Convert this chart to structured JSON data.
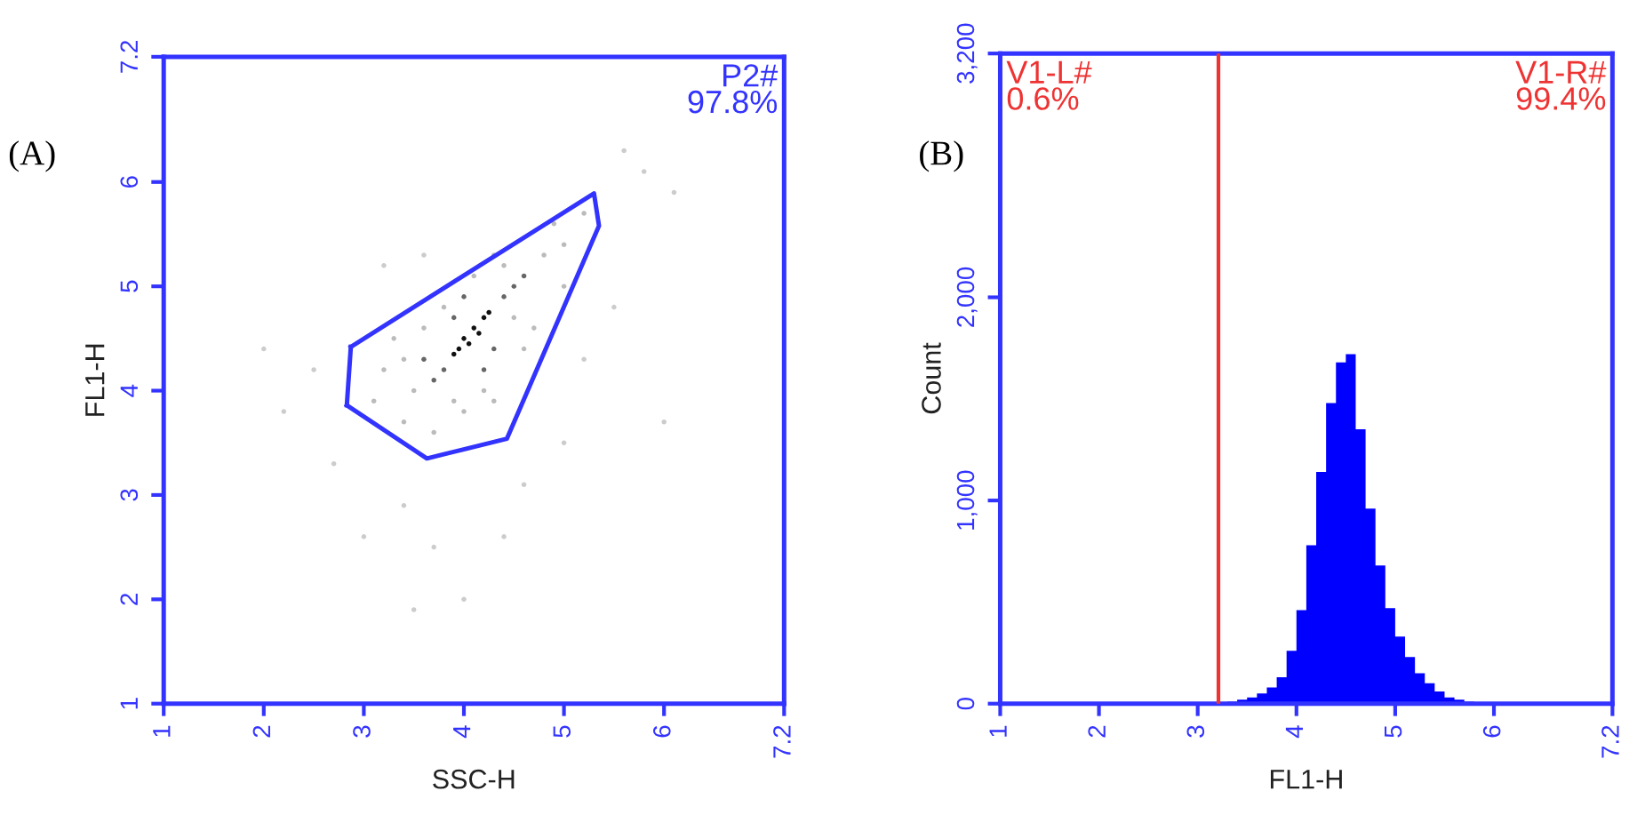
{
  "chart_data": [
    {
      "type": "scatter",
      "xlabel": "SSC-H",
      "ylabel": "FL1-H",
      "annotations": [
        "(A)",
        "P2#\n97.8%"
      ],
      "xlim": [
        1,
        7.2
      ],
      "ylim": [
        1,
        7.2
      ],
      "xticks": [
        1,
        2,
        3,
        4,
        5,
        6,
        7.2
      ],
      "yticks": [
        1,
        2,
        3,
        4,
        5,
        6,
        7.2
      ],
      "grid": false,
      "legend": false,
      "marker": "circle",
      "series": [
        {
          "type": "scatter",
          "x": [
            4.0,
            4.1,
            3.95,
            4.2,
            4.05,
            4.15,
            3.9,
            4.25,
            3.8,
            4.4,
            4.5,
            3.7,
            4.3,
            3.9,
            4.6,
            3.6,
            4.2,
            4.0,
            3.2,
            3.4,
            3.7,
            4.0,
            4.3,
            4.7,
            5.0,
            5.2,
            4.8,
            4.4,
            3.8,
            3.3,
            3.5,
            4.2,
            4.6,
            5.0,
            4.1,
            3.6,
            3.1,
            3.9,
            4.5,
            4.9,
            4.3,
            3.4,
            2.5,
            2.2,
            2.7,
            3.0,
            3.4,
            3.7,
            4.0,
            3.5,
            4.6,
            5.0,
            5.5,
            5.8,
            6.1,
            5.6,
            2.0,
            3.2,
            3.6,
            4.4,
            5.2,
            6.0
          ],
          "values": [
            4.5,
            4.6,
            4.4,
            4.7,
            4.45,
            4.55,
            4.35,
            4.75,
            4.2,
            4.9,
            5.0,
            4.1,
            4.4,
            4.7,
            5.1,
            4.3,
            4.2,
            4.9,
            4.2,
            3.7,
            3.6,
            3.8,
            3.9,
            4.6,
            5.4,
            5.7,
            5.3,
            5.2,
            4.8,
            4.5,
            4.0,
            4.0,
            4.4,
            5.0,
            5.1,
            4.6,
            3.9,
            3.9,
            4.7,
            5.6,
            5.3,
            4.3,
            4.2,
            3.8,
            3.3,
            2.6,
            2.9,
            2.5,
            2.0,
            1.9,
            3.1,
            3.5,
            4.8,
            6.1,
            5.9,
            6.3,
            4.4,
            5.2,
            5.3,
            2.6,
            4.3,
            3.7
          ],
          "colors": [
            "#111111",
            "#111111",
            "#111111",
            "#111111",
            "#111111",
            "#111111",
            "#111111",
            "#111111",
            "#666666",
            "#666666",
            "#666666",
            "#666666",
            "#666666",
            "#666666",
            "#666666",
            "#666666",
            "#666666",
            "#666666",
            "#bbbbbb",
            "#bbbbbb",
            "#bbbbbb",
            "#bbbbbb",
            "#bbbbbb",
            "#bbbbbb",
            "#bbbbbb",
            "#bbbbbb",
            "#bbbbbb",
            "#bbbbbb",
            "#bbbbbb",
            "#bbbbbb",
            "#bbbbbb",
            "#bbbbbb",
            "#bbbbbb",
            "#bbbbbb",
            "#bbbbbb",
            "#bbbbbb",
            "#bbbbbb",
            "#bbbbbb",
            "#bbbbbb",
            "#bbbbbb",
            "#bbbbbb",
            "#bbbbbb",
            "#cccccc",
            "#cccccc",
            "#cccccc",
            "#cccccc",
            "#cccccc",
            "#cccccc",
            "#cccccc",
            "#cccccc",
            "#cccccc",
            "#cccccc",
            "#cccccc",
            "#cccccc",
            "#cccccc",
            "#cccccc",
            "#cccccc",
            "#cccccc",
            "#cccccc",
            "#cccccc",
            "#cccccc",
            "#cccccc"
          ]
        },
        {
          "type": "line",
          "marker": "none",
          "line_style": "solid",
          "color": "#3333ff",
          "x": [
            2.87,
            5.3,
            5.35,
            4.43,
            3.63,
            2.83
          ],
          "values": [
            4.42,
            5.89,
            5.58,
            3.54,
            3.35,
            3.86
          ]
        },
        {
          "type": "line",
          "marker": "none",
          "line_style": "solid",
          "color": "#3333ff",
          "x": [
            2.83,
            2.87
          ],
          "values": [
            3.86,
            4.42
          ]
        }
      ]
    },
    {
      "type": "histogram",
      "xlabel": "FL1-H",
      "ylabel": "Count",
      "annotations": [
        "(B)",
        "V1-L#\n0.6%",
        "V1-R#\n99.4%"
      ],
      "xlim": [
        1,
        7.2
      ],
      "ylim": [
        0,
        3200
      ],
      "xticks": [
        1,
        2,
        3,
        4,
        5,
        6,
        7.2
      ],
      "yticks": [
        0,
        {
          "value": 1000,
          "label": "1,000"
        },
        {
          "value": 2000,
          "label": "2,000"
        },
        {
          "value": 3200,
          "label": "3,200"
        }
      ],
      "grid": false,
      "legend": false,
      "bins": [
        3.3,
        3.4,
        3.5,
        3.6,
        3.7,
        3.8,
        3.9,
        4.0,
        4.1,
        4.2,
        4.3,
        4.4,
        4.5,
        4.6,
        4.7,
        4.8,
        4.9,
        5.0,
        5.1,
        5.2,
        5.3,
        5.4,
        5.5,
        5.6,
        5.7,
        5.8
      ],
      "values": [
        10,
        20,
        30,
        50,
        80,
        130,
        260,
        460,
        780,
        1140,
        1480,
        1680,
        1720,
        1350,
        960,
        680,
        470,
        330,
        230,
        150,
        100,
        60,
        30,
        20,
        10
      ],
      "color": "#0000ff",
      "ref_lines": [
        {
          "axis": "x",
          "value": 3.21,
          "label": null,
          "color": "#ee3333"
        }
      ]
    }
  ]
}
